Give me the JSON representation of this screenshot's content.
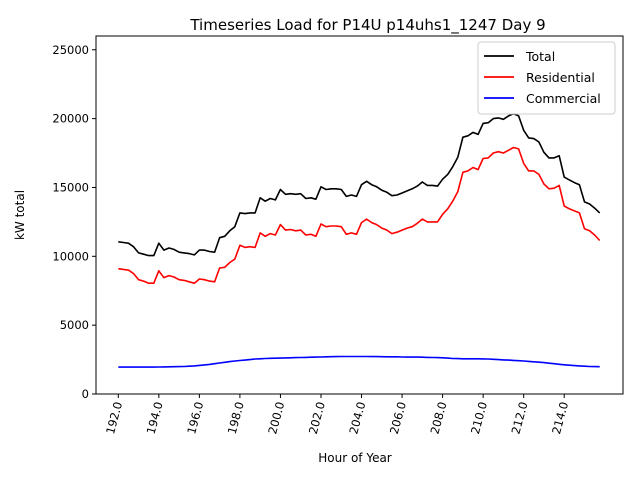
{
  "chart_data": {
    "type": "line",
    "title": "Timeseries Load for P14U p14uhs1_1247  Day 9",
    "xlabel": "Hour of Year",
    "ylabel": "kW total",
    "xlim": [
      190.9,
      216.9
    ],
    "ylim": [
      0,
      26000
    ],
    "xticks": [
      192,
      194,
      196,
      198,
      200,
      202,
      204,
      206,
      208,
      210,
      212,
      214
    ],
    "xtick_labels": [
      "192.0",
      "194.0",
      "196.0",
      "198.0",
      "200.0",
      "202.0",
      "204.0",
      "206.0",
      "208.0",
      "210.0",
      "212.0",
      "214.0"
    ],
    "yticks": [
      0,
      5000,
      10000,
      15000,
      20000,
      25000
    ],
    "ytick_labels": [
      "0",
      "5000",
      "10000",
      "15000",
      "20000",
      "25000"
    ],
    "legend_position": "top-right",
    "x": [
      192.0,
      192.25,
      192.5,
      192.75,
      193.0,
      193.25,
      193.5,
      193.75,
      194.0,
      194.25,
      194.5,
      194.75,
      195.0,
      195.25,
      195.5,
      195.75,
      196.0,
      196.25,
      196.5,
      196.75,
      197.0,
      197.25,
      197.5,
      197.75,
      198.0,
      198.25,
      198.5,
      198.75,
      199.0,
      199.25,
      199.5,
      199.75,
      200.0,
      200.25,
      200.5,
      200.75,
      201.0,
      201.25,
      201.5,
      201.75,
      202.0,
      202.25,
      202.5,
      202.75,
      203.0,
      203.25,
      203.5,
      203.75,
      204.0,
      204.25,
      204.5,
      204.75,
      205.0,
      205.25,
      205.5,
      205.75,
      206.0,
      206.25,
      206.5,
      206.75,
      207.0,
      207.25,
      207.5,
      207.75,
      208.0,
      208.25,
      208.5,
      208.75,
      209.0,
      209.25,
      209.5,
      209.75,
      210.0,
      210.25,
      210.5,
      210.75,
      211.0,
      211.25,
      211.5,
      211.75,
      212.0,
      212.25,
      212.5,
      212.75,
      213.0,
      213.25,
      213.5,
      213.75,
      214.0,
      214.25,
      214.5,
      214.75,
      215.0,
      215.25,
      215.5,
      215.75
    ],
    "series": [
      {
        "name": "Total",
        "color": "#000000",
        "values": [
          11050,
          11000,
          10950,
          10700,
          10250,
          10150,
          10050,
          10050,
          10950,
          10450,
          10600,
          10500,
          10300,
          10250,
          10200,
          10100,
          10450,
          10450,
          10350,
          10300,
          11350,
          11450,
          11850,
          12150,
          13150,
          13100,
          13150,
          13150,
          14250,
          14000,
          14200,
          14100,
          14850,
          14500,
          14550,
          14500,
          14550,
          14200,
          14250,
          14150,
          15050,
          14850,
          14900,
          14900,
          14850,
          14350,
          14450,
          14350,
          15200,
          15450,
          15200,
          15050,
          14800,
          14650,
          14400,
          14450,
          14600,
          14750,
          14900,
          15100,
          15400,
          15150,
          15150,
          15100,
          15600,
          15950,
          16500,
          17200,
          18650,
          18750,
          19000,
          18850,
          19650,
          19700,
          20000,
          20050,
          19950,
          20200,
          20350,
          20200,
          19150,
          18600,
          18550,
          18300,
          17550,
          17150,
          17150,
          17300,
          15750,
          15550,
          15350,
          15200,
          13950,
          13800,
          13500,
          13150
        ]
      },
      {
        "name": "Residential",
        "color": "#ff0000",
        "values": [
          9100,
          9050,
          9000,
          8750,
          8300,
          8200,
          8050,
          8050,
          8950,
          8450,
          8600,
          8500,
          8300,
          8250,
          8150,
          8050,
          8350,
          8300,
          8200,
          8150,
          9150,
          9200,
          9550,
          9800,
          10800,
          10650,
          10700,
          10650,
          11700,
          11450,
          11650,
          11550,
          12300,
          11900,
          11950,
          11850,
          11900,
          11550,
          11600,
          11450,
          12350,
          12150,
          12200,
          12200,
          12150,
          11600,
          11700,
          11600,
          12450,
          12700,
          12450,
          12300,
          12050,
          11900,
          11650,
          11750,
          11900,
          12050,
          12150,
          12400,
          12700,
          12500,
          12500,
          12500,
          13050,
          13450,
          14000,
          14700,
          16100,
          16200,
          16450,
          16300,
          17100,
          17150,
          17500,
          17600,
          17500,
          17700,
          17900,
          17800,
          16750,
          16200,
          16200,
          15950,
          15250,
          14900,
          14950,
          15150,
          13650,
          13450,
          13300,
          13150,
          12000,
          11850,
          11550,
          11150
        ]
      },
      {
        "name": "Commercial",
        "color": "#0000ff",
        "values": [
          1950,
          1950,
          1950,
          1950,
          1950,
          1950,
          1950,
          1955,
          1960,
          1970,
          1975,
          1980,
          1990,
          2000,
          2020,
          2040,
          2080,
          2110,
          2150,
          2200,
          2250,
          2300,
          2350,
          2400,
          2430,
          2460,
          2500,
          2540,
          2560,
          2580,
          2590,
          2600,
          2610,
          2620,
          2630,
          2640,
          2650,
          2660,
          2670,
          2680,
          2690,
          2700,
          2710,
          2715,
          2720,
          2720,
          2720,
          2720,
          2720,
          2720,
          2715,
          2715,
          2710,
          2705,
          2700,
          2700,
          2690,
          2680,
          2680,
          2680,
          2670,
          2660,
          2650,
          2640,
          2630,
          2610,
          2580,
          2570,
          2560,
          2560,
          2560,
          2560,
          2550,
          2540,
          2520,
          2500,
          2480,
          2460,
          2440,
          2420,
          2400,
          2370,
          2340,
          2310,
          2280,
          2240,
          2200,
          2160,
          2120,
          2090,
          2060,
          2040,
          2020,
          2000,
          1990,
          1980
        ]
      }
    ]
  }
}
